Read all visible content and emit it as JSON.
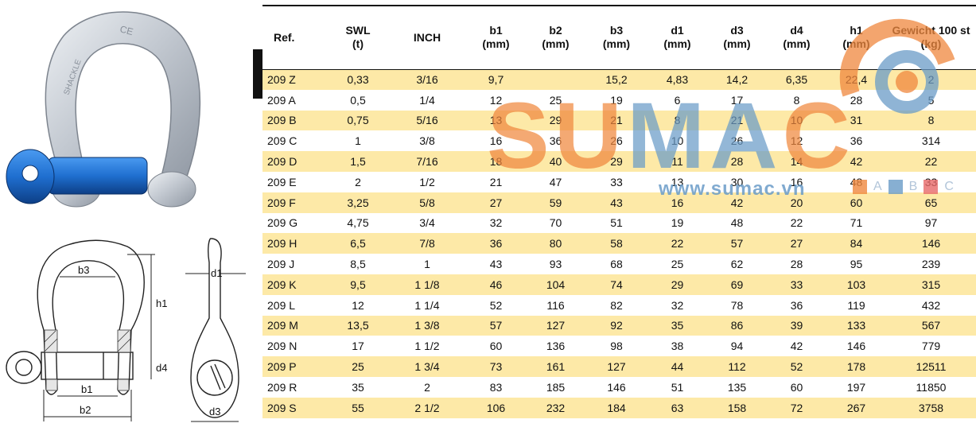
{
  "table": {
    "headers": [
      {
        "name": "Ref.",
        "unit": ""
      },
      {
        "name": "SWL",
        "unit": "(t)"
      },
      {
        "name": "INCH",
        "unit": ""
      },
      {
        "name": "b1",
        "unit": "(mm)"
      },
      {
        "name": "b2",
        "unit": "(mm)"
      },
      {
        "name": "b3",
        "unit": "(mm)"
      },
      {
        "name": "d1",
        "unit": "(mm)"
      },
      {
        "name": "d3",
        "unit": "(mm)"
      },
      {
        "name": "d4",
        "unit": "(mm)"
      },
      {
        "name": "h1",
        "unit": "(mm)"
      },
      {
        "name": "Gewicht 100 st",
        "unit": "(kg)"
      }
    ],
    "rows": [
      [
        "209 Z",
        "0,33",
        "3/16",
        "9,7",
        "",
        "15,2",
        "4,83",
        "14,2",
        "6,35",
        "22,4",
        "2"
      ],
      [
        "209 A",
        "0,5",
        "1/4",
        "12",
        "25",
        "19",
        "6",
        "17",
        "8",
        "28",
        "5"
      ],
      [
        "209 B",
        "0,75",
        "5/16",
        "13",
        "29",
        "21",
        "8",
        "21",
        "10",
        "31",
        "8"
      ],
      [
        "209 C",
        "1",
        "3/8",
        "16",
        "36",
        "26",
        "10",
        "26",
        "12",
        "36",
        "314"
      ],
      [
        "209 D",
        "1,5",
        "7/16",
        "18",
        "40",
        "29",
        "11",
        "28",
        "14",
        "42",
        "22"
      ],
      [
        "209 E",
        "2",
        "1/2",
        "21",
        "47",
        "33",
        "13",
        "30",
        "16",
        "48",
        "33"
      ],
      [
        "209 F",
        "3,25",
        "5/8",
        "27",
        "59",
        "43",
        "16",
        "42",
        "20",
        "60",
        "65"
      ],
      [
        "209 G",
        "4,75",
        "3/4",
        "32",
        "70",
        "51",
        "19",
        "48",
        "22",
        "71",
        "97"
      ],
      [
        "209 H",
        "6,5",
        "7/8",
        "36",
        "80",
        "58",
        "22",
        "57",
        "27",
        "84",
        "146"
      ],
      [
        "209 J",
        "8,5",
        "1",
        "43",
        "93",
        "68",
        "25",
        "62",
        "28",
        "95",
        "239"
      ],
      [
        "209 K",
        "9,5",
        "1 1/8",
        "46",
        "104",
        "74",
        "29",
        "69",
        "33",
        "103",
        "315"
      ],
      [
        "209 L",
        "12",
        "1 1/4",
        "52",
        "116",
        "82",
        "32",
        "78",
        "36",
        "119",
        "432"
      ],
      [
        "209 M",
        "13,5",
        "1 3/8",
        "57",
        "127",
        "92",
        "35",
        "86",
        "39",
        "133",
        "567"
      ],
      [
        "209 N",
        "17",
        "1 1/2",
        "60",
        "136",
        "98",
        "38",
        "94",
        "42",
        "146",
        "779"
      ],
      [
        "209 P",
        "25",
        "1 3/4",
        "73",
        "161",
        "127",
        "44",
        "112",
        "52",
        "178",
        "12511"
      ],
      [
        "209 R",
        "35",
        "2",
        "83",
        "185",
        "146",
        "51",
        "135",
        "60",
        "197",
        "11850"
      ],
      [
        "209 S",
        "55",
        "2 1/2",
        "106",
        "232",
        "184",
        "63",
        "158",
        "72",
        "267",
        "3758"
      ]
    ]
  },
  "diagram": {
    "labels": {
      "b1": "b1",
      "b2": "b2",
      "b3": "b3",
      "d1": "d1",
      "d3": "d3",
      "d4": "d4",
      "h1": "h1"
    },
    "stamp": "CE",
    "body_mark": "SHACKLE"
  },
  "watermark": {
    "letters": [
      "S",
      "U",
      "M",
      "A",
      "C"
    ],
    "letter_colors": [
      "#f0883e",
      "#f0883e",
      "#6a9cc8",
      "#6a9cc8",
      "#f0883e"
    ],
    "url": "www.sumac.vn",
    "legend": [
      "A",
      "B",
      "C"
    ],
    "legend_colors": [
      "#f0883e",
      "#6a9cc8",
      "#e86a6a"
    ]
  },
  "colors": {
    "row_alt": "#fde9a7",
    "pin_blue": "#1f6fd0",
    "shackle_grey": "#c9ced6"
  }
}
